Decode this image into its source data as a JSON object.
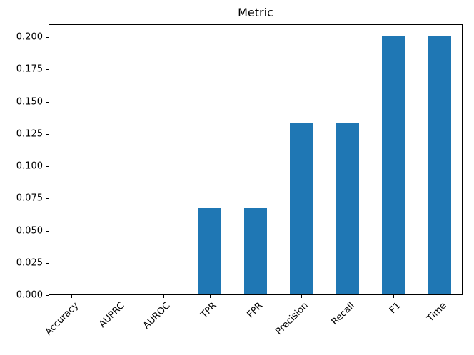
{
  "chart_data": {
    "type": "bar",
    "title": "Metric",
    "categories": [
      "Accuracy",
      "AUPRC",
      "AUROC",
      "TPR",
      "FPR",
      "Precision",
      "Recall",
      "F1",
      "Time"
    ],
    "values": [
      0,
      0,
      0,
      0.0667,
      0.0667,
      0.1333,
      0.1333,
      0.2,
      0.2
    ],
    "xlabel": "",
    "ylabel": "",
    "ylim": [
      0,
      0.21
    ],
    "yticks": [
      0,
      0.025,
      0.05,
      0.075,
      0.1,
      0.125,
      0.15,
      0.175,
      0.2
    ],
    "ytick_labels": [
      "0.000",
      "0.025",
      "0.050",
      "0.075",
      "0.100",
      "0.125",
      "0.150",
      "0.175",
      "0.200"
    ],
    "x_tick_rotation_deg": 45,
    "bar_color": "#1f77b4",
    "axis_color": "#000000",
    "background_color": "#ffffff",
    "grid": false,
    "legend": null
  }
}
